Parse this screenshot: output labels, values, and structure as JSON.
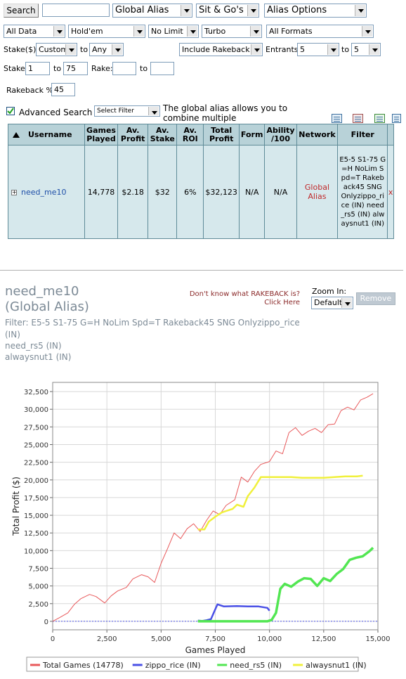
{
  "toolbar": {
    "search_button": "Search",
    "search_value": "",
    "alias_type": "Global Alias",
    "game_format": "Sit & Go's",
    "alias_options": "Alias Options"
  },
  "filters": {
    "data": "All Data",
    "game": "Hold'em",
    "limit": "No Limit",
    "speed": "Turbo",
    "formats": "All Formats",
    "stake_label": "Stake($)",
    "stake_from": "Custom",
    "to_label": "to",
    "stake_to": "Any",
    "rakeback_mode": "Include Rakeback",
    "entrants_label": "Entrants",
    "entrants_from": "5",
    "entrants_to": "5",
    "stake2_label": "Stake:",
    "stake_min": "1",
    "stake_max": "75",
    "rake_label": "Rake:",
    "rake_min": "",
    "rake_max": "",
    "rakeback_label": "Rakeback %",
    "rakeback_value": "45",
    "advanced_label": "Advanced Search",
    "advanced_checked": true,
    "select_filter": "Select Filter",
    "alias_info": "The global alias allows you to combine multiple usernames."
  },
  "table": {
    "headers": [
      "Username",
      "Games Played",
      "Av. Profit",
      "Av. Stake",
      "Av. ROI",
      "Total Profit",
      "Form",
      "Ability /100",
      "Network",
      "Filter"
    ],
    "row": {
      "expand": "+",
      "username": "need_me10",
      "games": "14,778",
      "avg_profit": "$2.18",
      "avg_stake": "$32",
      "roi": "6%",
      "total_profit": "$32,123",
      "form": "N/A",
      "ability": "N/A",
      "network": "Global Alias",
      "filter": "E5-5 S1-75 G=H NoLim Spd=T Rakeback45 SNG Onlyzippo_rice (IN) need_rs5 (IN) alwaysnut1 (IN)",
      "remove": "x"
    }
  },
  "player": {
    "name": "need_me10",
    "subtitle": "(Global Alias)",
    "filter_line1": "Filter: E5-5 S1-75 G=H NoLim Spd=T Rakeback45 SNG Onlyzippo_rice",
    "filter_line2": "(IN)",
    "filter_line3": "need_rs5 (IN)",
    "filter_line4": "alwaysnut1 (IN)",
    "rakeback_link": "Don't know what RAKEBACK is? Click Here",
    "zoom_label": "Zoom In:",
    "zoom_value": "Default",
    "remove_button": "Remove"
  },
  "chart_data": {
    "type": "line",
    "xlabel": "Games Played",
    "ylabel": "Total Profit ($)",
    "xlim": [
      0,
      15000
    ],
    "ylim": [
      -1200,
      33800
    ],
    "xticks": [
      0,
      2500,
      5000,
      7500,
      10000,
      12500,
      15000
    ],
    "yticks": [
      0,
      2500,
      5000,
      7500,
      10000,
      12500,
      15000,
      17500,
      20000,
      22500,
      25000,
      27500,
      30000,
      32500
    ],
    "xtick_labels": [
      "0",
      "2,500",
      "5,000",
      "7,500",
      "10,000",
      "12,500",
      "15,000"
    ],
    "ytick_labels": [
      "0",
      "2,500",
      "5,000",
      "7,500",
      "10,000",
      "12,500",
      "15,000",
      "17,500",
      "20,000",
      "22,500",
      "25,000",
      "27,500",
      "30,000",
      "32,500"
    ],
    "legend_position": "bottom",
    "series": [
      {
        "name": "Total Games (14778)",
        "color": "#e8585a",
        "x": [
          0,
          300,
          700,
          1000,
          1300,
          1700,
          2000,
          2400,
          2700,
          3000,
          3400,
          3700,
          4100,
          4400,
          4700,
          5000,
          5300,
          5600,
          5900,
          6200,
          6500,
          6800,
          7100,
          7400,
          7700,
          8000,
          8400,
          8700,
          9000,
          9300,
          9600,
          10000,
          10300,
          10600,
          10900,
          11200,
          11500,
          11800,
          12100,
          12400,
          12700,
          13000,
          13300,
          13600,
          13900,
          14200,
          14500,
          14778
        ],
        "y": [
          0,
          500,
          1200,
          2400,
          3200,
          3800,
          3500,
          2600,
          3600,
          4300,
          4800,
          6000,
          6600,
          6300,
          5500,
          8200,
          10300,
          12500,
          11700,
          13100,
          13800,
          12700,
          14300,
          15600,
          15100,
          16400,
          17200,
          20400,
          19700,
          21200,
          22200,
          22600,
          24100,
          23700,
          26700,
          27400,
          26300,
          26900,
          27300,
          26700,
          27800,
          27900,
          29800,
          30300,
          29900,
          31300,
          31700,
          32200
        ]
      },
      {
        "name": "zippo_rice (IN)",
        "color": "#4a50e6",
        "x": [
          6700,
          6900,
          7100,
          7300,
          7500,
          7600,
          7900,
          8500,
          9000,
          9500,
          9900,
          10000
        ],
        "y": [
          100,
          50,
          150,
          300,
          1700,
          2400,
          2100,
          2150,
          2100,
          2100,
          1900,
          1500
        ]
      },
      {
        "name": "need_rs5 (IN)",
        "color": "#52e652",
        "x": [
          6700,
          7000,
          7500,
          8000,
          8500,
          9000,
          9500,
          9900,
          10100,
          10300,
          10500,
          10700,
          11000,
          11300,
          11600,
          11900,
          12200,
          12500,
          12800,
          13100,
          13400,
          13700,
          14000,
          14300,
          14600,
          14778
        ],
        "y": [
          0,
          0,
          0,
          0,
          0,
          0,
          0,
          0,
          200,
          1200,
          4600,
          5300,
          4900,
          5600,
          6100,
          6000,
          5000,
          6100,
          5700,
          6700,
          7400,
          8700,
          9000,
          9200,
          9900,
          10400
        ]
      },
      {
        "name": "alwaysnut1 (IN)",
        "color": "#f0f03c",
        "x": [
          6700,
          7000,
          7200,
          7500,
          7800,
          8000,
          8300,
          8500,
          8800,
          9000,
          9300,
          9600,
          9900,
          10000,
          10500,
          11000,
          11500,
          12000,
          12500,
          13000,
          13500,
          14000,
          14300
        ],
        "y": [
          13000,
          13000,
          14100,
          14800,
          15400,
          15600,
          15900,
          16500,
          16200,
          17700,
          18900,
          20400,
          20400,
          20400,
          20400,
          20400,
          20300,
          20300,
          20300,
          20400,
          20500,
          20500,
          20600
        ]
      }
    ]
  }
}
